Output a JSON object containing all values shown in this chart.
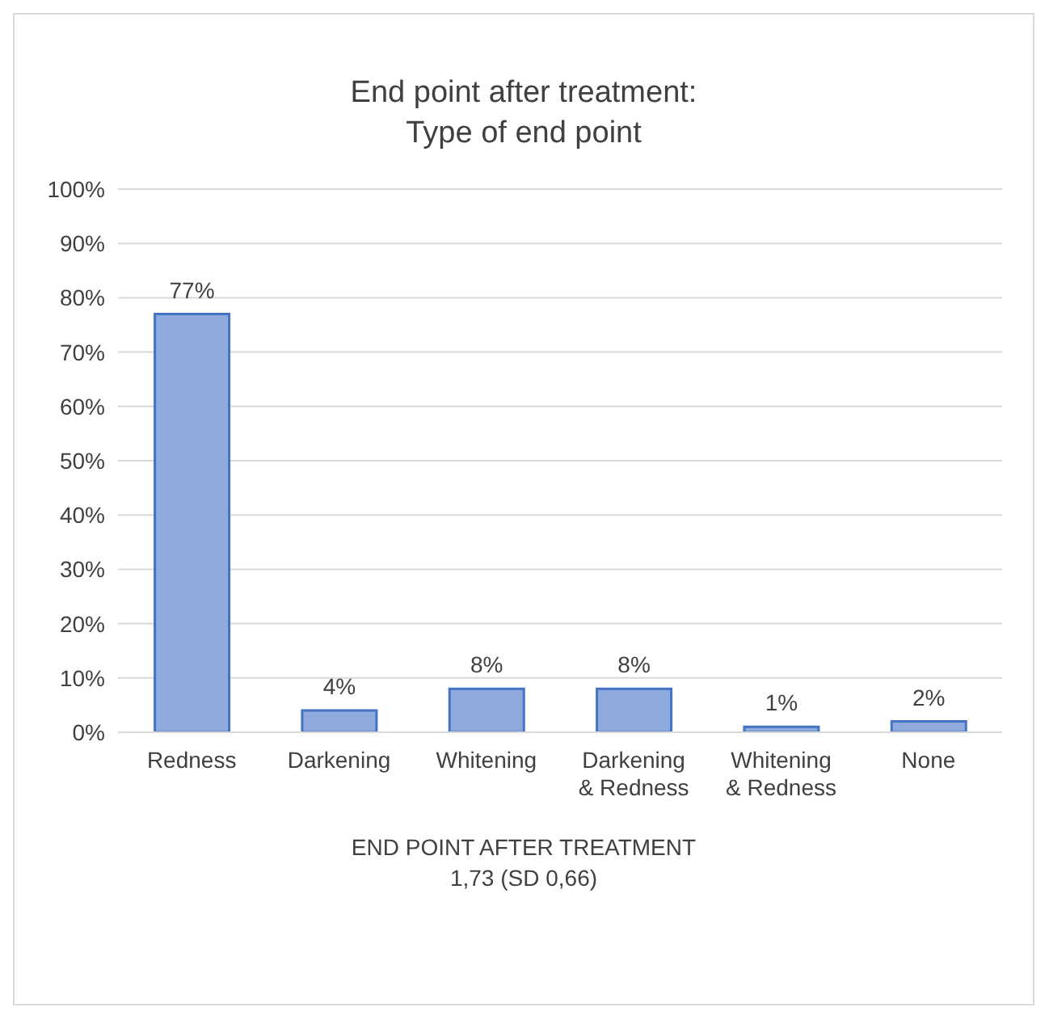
{
  "chart_data": {
    "type": "bar",
    "title": "End point after treatment:\nType of end point",
    "categories": [
      "Redness",
      "Darkening",
      "Whitening",
      "Darkening & Redness",
      "Whitening & Redness",
      "None"
    ],
    "values": [
      77,
      4,
      8,
      8,
      1,
      2
    ],
    "value_labels": [
      "77%",
      "4%",
      "8%",
      "8%",
      "1%",
      "2%"
    ],
    "color": "#8faadc",
    "ylim": [
      0,
      100
    ],
    "yticks": [
      {
        "value": 0,
        "label": "0%"
      },
      {
        "value": 10,
        "label": "10%"
      },
      {
        "value": 20,
        "label": "20%"
      },
      {
        "value": 30,
        "label": "30%"
      },
      {
        "value": 40,
        "label": "40%"
      },
      {
        "value": 50,
        "label": "50%"
      },
      {
        "value": 60,
        "label": "60%"
      },
      {
        "value": 70,
        "label": "70%"
      },
      {
        "value": 80,
        "label": "80%"
      },
      {
        "value": 90,
        "label": "90%"
      },
      {
        "value": 100,
        "label": "100%"
      }
    ],
    "grid": "y",
    "xlabel": "END POINT AFTER TREATMENT",
    "annotations": [
      "1,73 (SD 0,66)"
    ]
  }
}
